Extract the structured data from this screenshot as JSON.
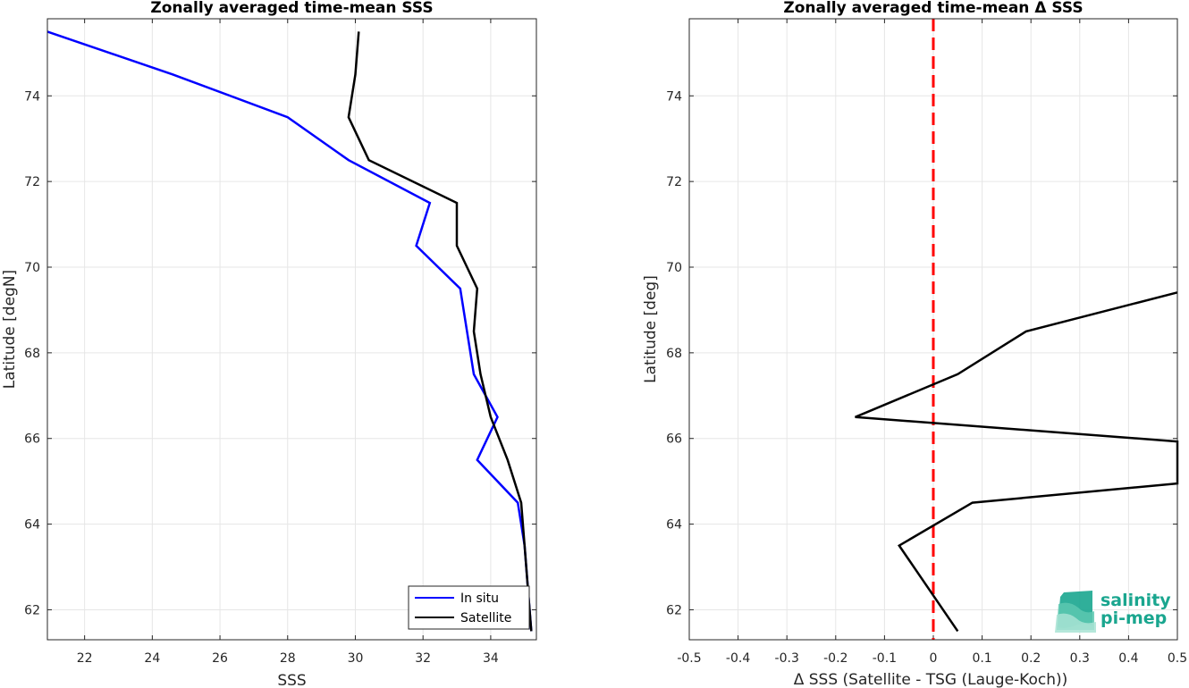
{
  "chart_data": [
    {
      "type": "line",
      "title": "Zonally averaged time-mean SSS",
      "xlabel": "SSS",
      "ylabel": "Latitude [degN]",
      "xlim": [
        20.9,
        35.35
      ],
      "ylim": [
        61.3,
        75.8
      ],
      "xticks": [
        22,
        24,
        26,
        28,
        30,
        32,
        34
      ],
      "yticks": [
        62,
        64,
        66,
        68,
        70,
        72,
        74
      ],
      "grid": true,
      "legend_position": "bottom-right",
      "series": [
        {
          "name": "In situ",
          "color": "#0000ff",
          "points": [
            {
              "x": 20.9,
              "y": 75.5
            },
            {
              "x": 24.6,
              "y": 74.5
            },
            {
              "x": 28.0,
              "y": 73.5
            },
            {
              "x": 29.8,
              "y": 72.5
            },
            {
              "x": 32.2,
              "y": 71.5
            },
            {
              "x": 31.8,
              "y": 70.5
            },
            {
              "x": 33.1,
              "y": 69.5
            },
            {
              "x": 33.3,
              "y": 68.5
            },
            {
              "x": 33.5,
              "y": 67.5
            },
            {
              "x": 34.2,
              "y": 66.5
            },
            {
              "x": 33.6,
              "y": 65.5
            },
            {
              "x": 34.8,
              "y": 64.5
            },
            {
              "x": 35.0,
              "y": 63.5
            },
            {
              "x": 35.1,
              "y": 62.5
            },
            {
              "x": 35.2,
              "y": 61.5
            }
          ]
        },
        {
          "name": "Satellite",
          "color": "#000000",
          "points": [
            {
              "x": 30.1,
              "y": 75.5
            },
            {
              "x": 30.0,
              "y": 74.5
            },
            {
              "x": 29.8,
              "y": 73.5
            },
            {
              "x": 30.4,
              "y": 72.5
            },
            {
              "x": 33.0,
              "y": 71.5
            },
            {
              "x": 33.0,
              "y": 70.5
            },
            {
              "x": 33.6,
              "y": 69.5
            },
            {
              "x": 33.5,
              "y": 68.5
            },
            {
              "x": 33.7,
              "y": 67.5
            },
            {
              "x": 34.0,
              "y": 66.5
            },
            {
              "x": 34.5,
              "y": 65.5
            },
            {
              "x": 34.9,
              "y": 64.5
            },
            {
              "x": 35.0,
              "y": 63.5
            },
            {
              "x": 35.1,
              "y": 62.5
            },
            {
              "x": 35.2,
              "y": 61.5
            }
          ]
        }
      ]
    },
    {
      "type": "line",
      "title": "Zonally averaged time-mean Δ SSS",
      "xlabel": "Δ SSS (Satellite - TSG (Lauge-Koch))",
      "ylabel": "Latitude [deg]",
      "xlim": [
        -0.5,
        0.5
      ],
      "ylim": [
        61.3,
        75.8
      ],
      "xticks": [
        -0.5,
        -0.4,
        -0.3,
        -0.2,
        -0.1,
        0,
        0.1,
        0.2,
        0.3,
        0.4,
        0.5
      ],
      "yticks": [
        62,
        64,
        66,
        68,
        70,
        72,
        74
      ],
      "grid": true,
      "reference_line": {
        "x": 0,
        "color": "#ff0000",
        "style": "dashed"
      },
      "series": [
        {
          "color": "#000000",
          "points": [
            {
              "x": 0.05,
              "y": 61.5
            },
            {
              "x": -0.07,
              "y": 63.5
            },
            {
              "x": 0.08,
              "y": 64.5
            },
            {
              "x": 0.5,
              "y": 64.95
            },
            {
              "x": 0.5,
              "y": 65.93
            },
            {
              "x": -0.16,
              "y": 66.5
            },
            {
              "x": 0.05,
              "y": 67.5
            },
            {
              "x": 0.19,
              "y": 68.5
            },
            {
              "x": 0.5,
              "y": 69.41
            }
          ]
        }
      ]
    }
  ],
  "logo": {
    "line1": "salinity",
    "line2": "pi-mep",
    "color": "#1aa68f"
  }
}
